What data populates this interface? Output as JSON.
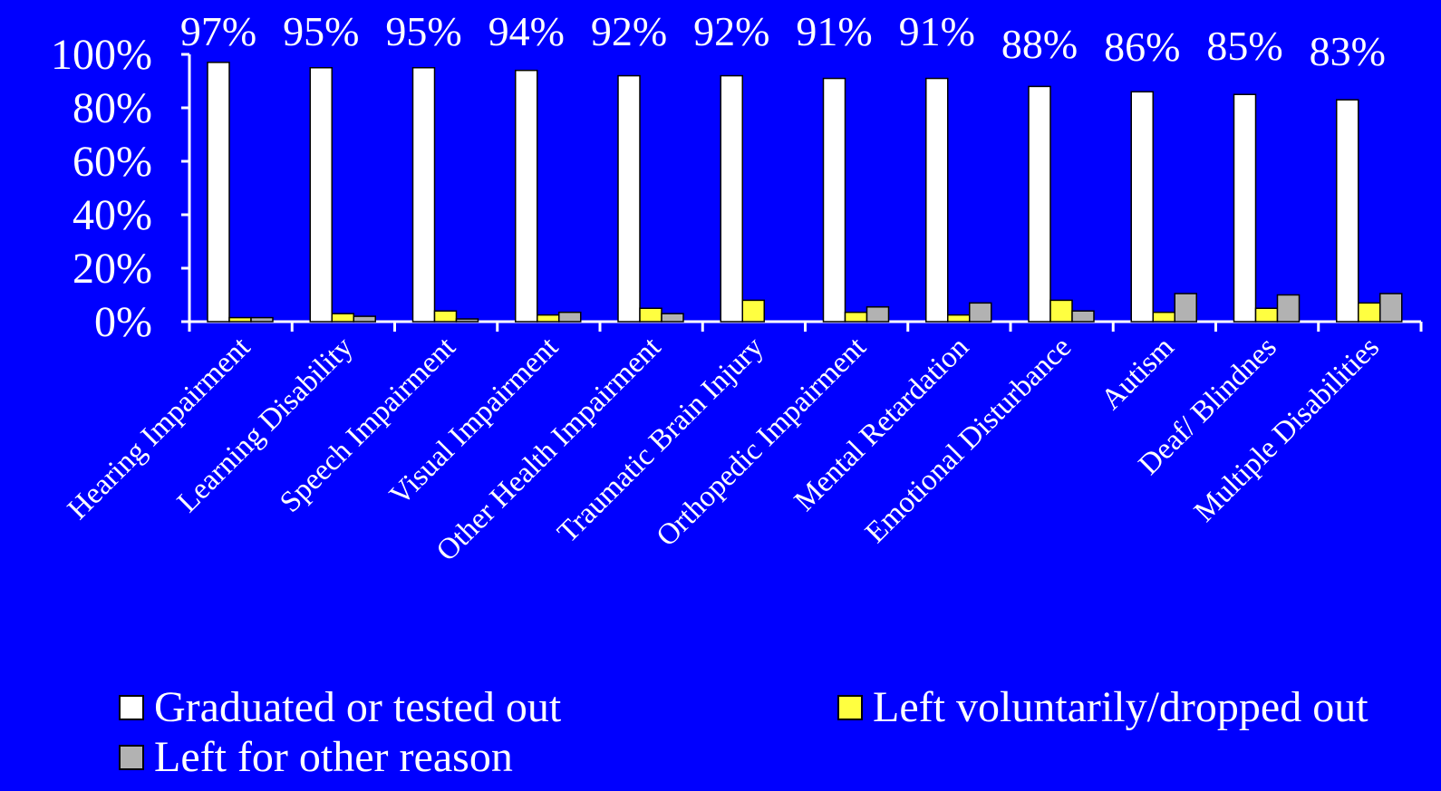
{
  "colors": {
    "background": "#0000FF",
    "axis": "#FFFFFF",
    "text": "#FFFFFF"
  },
  "chart_data": {
    "type": "bar",
    "title": "",
    "xlabel": "",
    "ylabel": "",
    "ylim": [
      0,
      100
    ],
    "yticks": [
      {
        "value": 0,
        "label": "0%"
      },
      {
        "value": 20,
        "label": "20%"
      },
      {
        "value": 40,
        "label": "40%"
      },
      {
        "value": 60,
        "label": "60%"
      },
      {
        "value": 80,
        "label": "80%"
      },
      {
        "value": 100,
        "label": "100%"
      }
    ],
    "grid": false,
    "legend_position": "bottom",
    "categories": [
      "Hearing Impairment",
      "Learning Disability",
      "Speech Impairment",
      "Visual Impairment",
      "Other Health Impairment",
      "Traumatic Brain Injury",
      "Orthopedic Impairment",
      "Mental Retardation",
      "Emotional Disturbance",
      "Autism",
      "Deaf/ Blindnes",
      "Multiple Disabilities"
    ],
    "series": [
      {
        "name": "Graduated or tested out",
        "color": "#FFFFFF",
        "values": [
          97,
          95,
          95,
          94,
          92,
          92,
          91,
          91,
          88,
          86,
          85,
          83
        ],
        "data_labels": [
          "97%",
          "95%",
          "95%",
          "94%",
          "92%",
          "92%",
          "91%",
          "91%",
          "88%",
          "86%",
          "85%",
          "83%"
        ]
      },
      {
        "name": "Left voluntarily/dropped out",
        "color": "#FFFF40",
        "values": [
          1.5,
          3,
          4,
          2.5,
          5,
          8,
          3.5,
          2.5,
          8,
          3.5,
          5,
          7
        ]
      },
      {
        "name": "Left for other reason",
        "color": "#B2B2B2",
        "values": [
          1.5,
          2,
          1,
          3.5,
          3,
          0,
          5.5,
          7,
          4,
          10.5,
          10,
          10.5
        ]
      }
    ]
  }
}
